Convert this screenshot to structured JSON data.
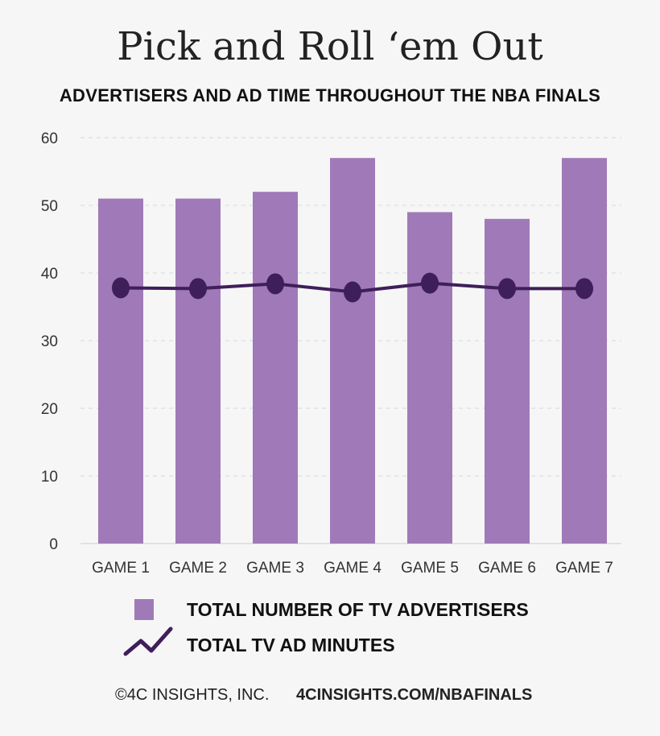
{
  "chart_data": {
    "type": "bar+line",
    "title": "Pick and Roll ‘em Out",
    "subtitle": "ADVERTISERS AND AD TIME THROUGHOUT THE NBA FINALS",
    "categories": [
      "GAME 1",
      "GAME 2",
      "GAME 3",
      "GAME 4",
      "GAME 5",
      "GAME 6",
      "GAME 7"
    ],
    "ylim": [
      0,
      60
    ],
    "yticks": [
      0,
      10,
      20,
      30,
      40,
      50,
      60
    ],
    "grid": true,
    "legend_placement": "bottom",
    "series": [
      {
        "name": "TOTAL NUMBER OF TV ADVERTISERS",
        "type": "bar",
        "color": "#a07ab8",
        "values": [
          51,
          51,
          52,
          57,
          49,
          48,
          57
        ]
      },
      {
        "name": "TOTAL TV AD MINUTES",
        "type": "line",
        "color": "#3f1f5a",
        "values": [
          37.8,
          37.7,
          38.4,
          37.2,
          38.5,
          37.7,
          37.7
        ]
      }
    ]
  },
  "footer": {
    "copyright": "©4C INSIGHTS, INC.",
    "url": "4CINSIGHTS.COM/NBAFINALS"
  }
}
